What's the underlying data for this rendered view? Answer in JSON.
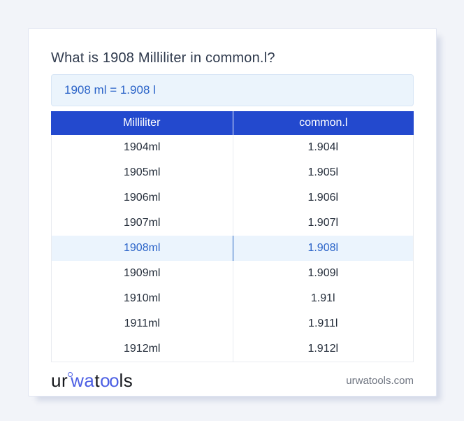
{
  "page": {
    "question_title": "What is 1908 Milliliter in common.l?",
    "result_text": "1908 ml = 1.908 l"
  },
  "table": {
    "headers": {
      "from": "Milliliter",
      "to": "common.l"
    },
    "rows": [
      {
        "ml": "1904ml",
        "l": "1.904l",
        "highlight": false
      },
      {
        "ml": "1905ml",
        "l": "1.905l",
        "highlight": false
      },
      {
        "ml": "1906ml",
        "l": "1.906l",
        "highlight": false
      },
      {
        "ml": "1907ml",
        "l": "1.907l",
        "highlight": false
      },
      {
        "ml": "1908ml",
        "l": "1.908l",
        "highlight": true
      },
      {
        "ml": "1909ml",
        "l": "1.909l",
        "highlight": false
      },
      {
        "ml": "1910ml",
        "l": "1.91l",
        "highlight": false
      },
      {
        "ml": "1911ml",
        "l": "1.911l",
        "highlight": false
      },
      {
        "ml": "1912ml",
        "l": "1.912l",
        "highlight": false
      }
    ]
  },
  "footer": {
    "logo_parts": {
      "p1": "ur",
      "p2": "wa",
      "p3": "t",
      "p4": "oo",
      "p5": "ls"
    },
    "domain": "urwatools.com"
  },
  "colors": {
    "header_blue": "#2349CE",
    "highlight_row_bg": "#EBF4FD",
    "result_blue_text": "#2A63C8",
    "result_box_bg": "#EBF4FC",
    "logo_blue": "#4C5FE4",
    "page_bg": "#F2F4F9"
  }
}
